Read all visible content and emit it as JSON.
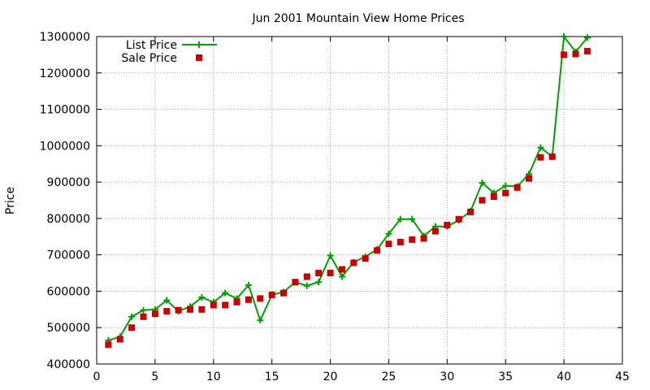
{
  "chart_data": {
    "type": "line",
    "title": "Jun 2001 Mountain View Home Prices",
    "xlabel": "",
    "ylabel": "Price",
    "xlim": [
      0,
      45
    ],
    "ylim": [
      400000,
      1300000
    ],
    "xticks": [
      0,
      5,
      10,
      15,
      20,
      25,
      30,
      35,
      40,
      45
    ],
    "yticks": [
      400000,
      500000,
      600000,
      700000,
      800000,
      900000,
      1000000,
      1100000,
      1200000,
      1300000
    ],
    "grid": true,
    "legend_position": "top-left",
    "x": [
      1,
      2,
      3,
      4,
      5,
      6,
      7,
      8,
      9,
      10,
      11,
      12,
      13,
      14,
      15,
      16,
      17,
      18,
      19,
      20,
      21,
      22,
      23,
      24,
      25,
      26,
      27,
      28,
      29,
      30,
      31,
      32,
      33,
      34,
      35,
      36,
      37,
      38,
      39,
      40,
      41,
      42
    ],
    "series": [
      {
        "name": "List Price",
        "style": "line-points",
        "color": "#00a000",
        "values": [
          465000,
          475000,
          530000,
          548000,
          550000,
          575000,
          545000,
          558000,
          583000,
          570000,
          595000,
          580000,
          617000,
          520000,
          590000,
          598000,
          625000,
          615000,
          625000,
          698000,
          640000,
          680000,
          695000,
          715000,
          758000,
          798000,
          798000,
          752000,
          778000,
          778000,
          795000,
          820000,
          898000,
          870000,
          890000,
          888000,
          922000,
          995000,
          970000,
          1300000,
          1258000,
          1297000
        ]
      },
      {
        "name": "Sale Price",
        "style": "points",
        "color": "#cc0000",
        "values": [
          453000,
          468000,
          500000,
          530000,
          538000,
          545000,
          548000,
          550000,
          550000,
          562000,
          562000,
          570000,
          577000,
          580000,
          590000,
          595000,
          625000,
          640000,
          650000,
          650000,
          660000,
          678000,
          690000,
          712000,
          730000,
          735000,
          742000,
          745000,
          765000,
          782000,
          798000,
          818000,
          850000,
          860000,
          870000,
          885000,
          910000,
          968000,
          970000,
          1250000,
          1252000,
          1260000
        ]
      }
    ]
  }
}
